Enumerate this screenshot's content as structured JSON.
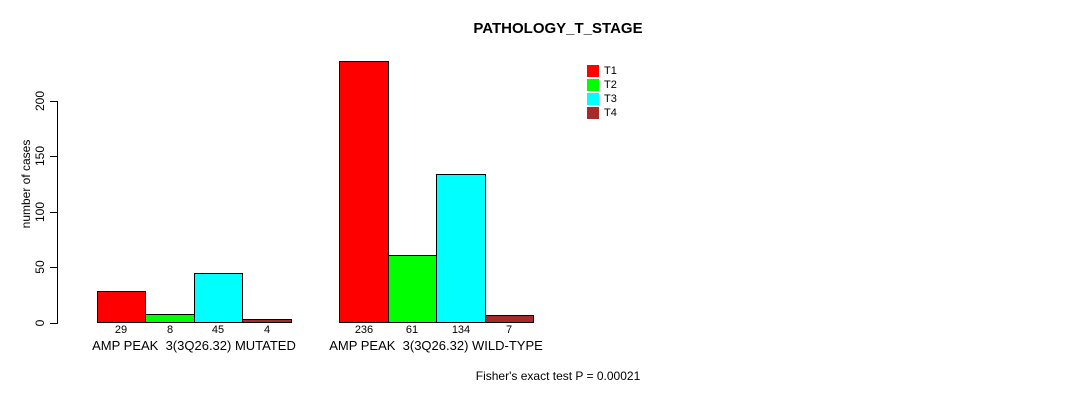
{
  "chart_data": {
    "type": "bar",
    "title": "PATHOLOGY_T_STAGE",
    "ylabel": "number of cases",
    "xlabel": "",
    "ylim": [
      0,
      200
    ],
    "yticks": [
      0,
      50,
      100,
      150,
      200
    ],
    "grid": false,
    "legend_position": "top-right-inside",
    "categories": [
      "AMP PEAK  3(3Q26.32) MUTATED",
      "AMP PEAK  3(3Q26.32) WILD-TYPE"
    ],
    "series": [
      {
        "name": "T1",
        "color": "#FF0000",
        "values": [
          29,
          236
        ]
      },
      {
        "name": "T2",
        "color": "#00FF00",
        "values": [
          8,
          61
        ]
      },
      {
        "name": "T3",
        "color": "#00FFFF",
        "values": [
          45,
          134
        ]
      },
      {
        "name": "T4",
        "color": "#A52A2A",
        "values": [
          4,
          7
        ]
      }
    ],
    "bar_value_labels": [
      [
        "29",
        "8",
        "45",
        "4"
      ],
      [
        "236",
        "61",
        "134",
        "7"
      ]
    ],
    "annotation": "Fisher's exact test P = 0.00021",
    "colors": {
      "background": "#FFFFFF",
      "axis": "#000000",
      "text": "#000000"
    }
  }
}
